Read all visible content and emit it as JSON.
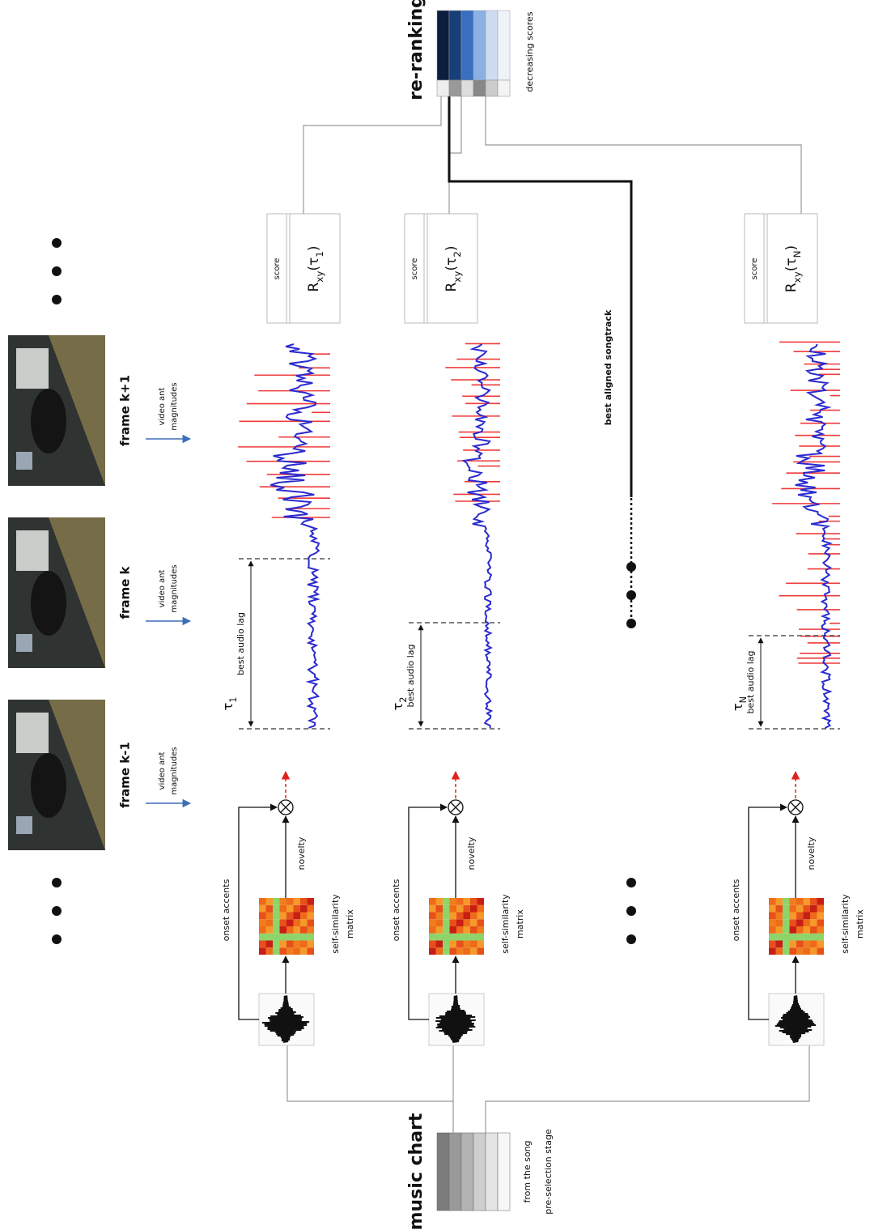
{
  "music_chart": {
    "title": "music chart",
    "caption": [
      "from the song",
      "pre-selection stage"
    ]
  },
  "frames": [
    "frame k-1",
    "frame k",
    "frame k+1"
  ],
  "flow_label": [
    "video ant",
    "magnitudes"
  ],
  "rows": [
    {
      "onset": "onset accents",
      "novelty": "novelty",
      "ssm": [
        "self-similarity",
        "matrix"
      ],
      "lag": "τ",
      "lag_index": "1",
      "lag_label": "best audio lag",
      "score": "score",
      "corr_name": "R",
      "corr_sub": "xy",
      "corr_open": "(τ",
      "corr_index": "1",
      "corr_close": ")"
    },
    {
      "onset": "onset accents",
      "novelty": "novelty",
      "ssm": [
        "self-similarity",
        "matrix"
      ],
      "lag": "τ",
      "lag_index": "2",
      "lag_label": "best audio lag",
      "score": "score",
      "corr_name": "R",
      "corr_sub": "xy",
      "corr_open": "(τ",
      "corr_index": "2",
      "corr_close": ")"
    },
    {
      "onset": "onset accents",
      "novelty": "novelty",
      "ssm": [
        "self-similarity",
        "matrix"
      ],
      "lag": "τ",
      "lag_index": "N",
      "lag_label": "best audio lag",
      "score": "score",
      "corr_name": "R",
      "corr_sub": "xy",
      "corr_open": "(τ",
      "corr_index": "N",
      "corr_close": ")"
    }
  ],
  "best_aligned": "best aligned songtrack",
  "re_ranking": {
    "title": "re-ranking",
    "caption": "decreasing scores"
  }
}
